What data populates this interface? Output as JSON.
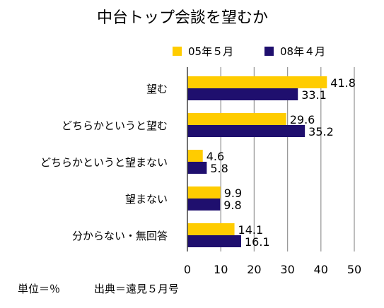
{
  "chart_data": {
    "type": "bar",
    "orientation": "horizontal",
    "title": "中台トップ会談を望むか",
    "categories": [
      "望む",
      "どちらかというと望む",
      "どちらかというと望まない",
      "望まない",
      "分からない・無回答"
    ],
    "series": [
      {
        "name": "05年５月",
        "values": [
          41.8,
          29.6,
          4.6,
          9.9,
          14.1
        ],
        "color": "#FFCC00"
      },
      {
        "name": "08年４月",
        "values": [
          33.1,
          35.2,
          5.8,
          9.8,
          16.1
        ],
        "color": "#1F0F6E"
      }
    ],
    "xlim": [
      0,
      50
    ],
    "xticks": [
      0,
      10,
      20,
      30,
      40,
      50
    ],
    "grid": true,
    "legend_position": "top",
    "notes": {
      "unit": "単位＝％",
      "source": "出典＝遠見５月号"
    }
  }
}
